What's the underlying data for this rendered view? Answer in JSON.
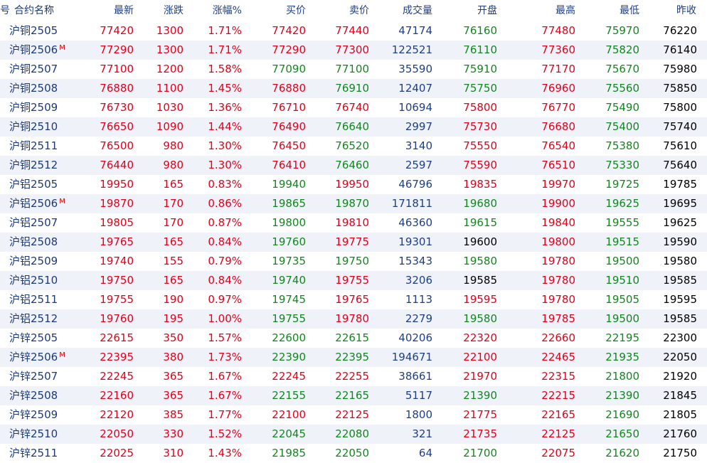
{
  "header": {
    "index": "号",
    "name": "合约名称",
    "last": "最新",
    "change": "涨跌",
    "pct": "涨幅%",
    "bid": "买价",
    "ask": "卖价",
    "volume": "成交量",
    "open": "开盘",
    "high": "最高",
    "low": "最低",
    "prev": "昨收"
  },
  "colors": {
    "up": "#e1001a",
    "down": "#11871d",
    "flat": "#000000",
    "text_blue": "#1f3f84",
    "stripe": "#f0f2fa"
  },
  "rows": [
    {
      "name": "沪铜2505",
      "m": "",
      "last": "77420",
      "change": "1300",
      "pct": "1.71%",
      "bid": "77420",
      "ask": "77440",
      "volume": "47174",
      "open": "76160",
      "high": "77480",
      "low": "75970",
      "prev": "76220",
      "c": {
        "last": "up",
        "change": "up",
        "pct": "up",
        "bid": "up",
        "ask": "up",
        "open": "down",
        "high": "up",
        "low": "down"
      }
    },
    {
      "name": "沪铜2506",
      "m": "M",
      "last": "77290",
      "change": "1300",
      "pct": "1.71%",
      "bid": "77290",
      "ask": "77300",
      "volume": "122521",
      "open": "76110",
      "high": "77360",
      "low": "75820",
      "prev": "76140",
      "c": {
        "last": "up",
        "change": "up",
        "pct": "up",
        "bid": "up",
        "ask": "up",
        "open": "down",
        "high": "up",
        "low": "down"
      }
    },
    {
      "name": "沪铜2507",
      "m": "",
      "last": "77100",
      "change": "1200",
      "pct": "1.58%",
      "bid": "77090",
      "ask": "77100",
      "volume": "35590",
      "open": "75910",
      "high": "77170",
      "low": "75670",
      "prev": "75980",
      "c": {
        "last": "up",
        "change": "up",
        "pct": "up",
        "bid": "down",
        "ask": "down",
        "open": "down",
        "high": "up",
        "low": "down"
      }
    },
    {
      "name": "沪铜2508",
      "m": "",
      "last": "76880",
      "change": "1100",
      "pct": "1.45%",
      "bid": "76880",
      "ask": "76910",
      "volume": "12407",
      "open": "75750",
      "high": "76960",
      "low": "75560",
      "prev": "75850",
      "c": {
        "last": "up",
        "change": "up",
        "pct": "up",
        "bid": "up",
        "ask": "down",
        "open": "down",
        "high": "up",
        "low": "down"
      }
    },
    {
      "name": "沪铜2509",
      "m": "",
      "last": "76730",
      "change": "1030",
      "pct": "1.36%",
      "bid": "76710",
      "ask": "76740",
      "volume": "10694",
      "open": "75800",
      "high": "76770",
      "low": "75490",
      "prev": "75800",
      "c": {
        "last": "up",
        "change": "up",
        "pct": "up",
        "bid": "up",
        "ask": "up",
        "open": "up",
        "high": "up",
        "low": "down"
      }
    },
    {
      "name": "沪铜2510",
      "m": "",
      "last": "76650",
      "change": "1090",
      "pct": "1.44%",
      "bid": "76490",
      "ask": "76640",
      "volume": "2997",
      "open": "75730",
      "high": "76680",
      "low": "75400",
      "prev": "75740",
      "c": {
        "last": "up",
        "change": "up",
        "pct": "up",
        "bid": "up",
        "ask": "down",
        "open": "up",
        "high": "up",
        "low": "down"
      }
    },
    {
      "name": "沪铜2511",
      "m": "",
      "last": "76500",
      "change": "980",
      "pct": "1.30%",
      "bid": "76450",
      "ask": "76520",
      "volume": "3140",
      "open": "75550",
      "high": "76540",
      "low": "75380",
      "prev": "75610",
      "c": {
        "last": "up",
        "change": "up",
        "pct": "up",
        "bid": "up",
        "ask": "down",
        "open": "up",
        "high": "up",
        "low": "down"
      }
    },
    {
      "name": "沪铜2512",
      "m": "",
      "last": "76440",
      "change": "980",
      "pct": "1.30%",
      "bid": "76410",
      "ask": "76460",
      "volume": "2597",
      "open": "75590",
      "high": "76510",
      "low": "75330",
      "prev": "75640",
      "c": {
        "last": "up",
        "change": "up",
        "pct": "up",
        "bid": "up",
        "ask": "down",
        "open": "up",
        "high": "up",
        "low": "down"
      }
    },
    {
      "name": "沪铝2505",
      "m": "",
      "last": "19950",
      "change": "165",
      "pct": "0.83%",
      "bid": "19940",
      "ask": "19950",
      "volume": "46796",
      "open": "19835",
      "high": "19970",
      "low": "19725",
      "prev": "19785",
      "c": {
        "last": "up",
        "change": "up",
        "pct": "up",
        "bid": "down",
        "ask": "up",
        "open": "up",
        "high": "up",
        "low": "down"
      }
    },
    {
      "name": "沪铝2506",
      "m": "M",
      "last": "19870",
      "change": "170",
      "pct": "0.86%",
      "bid": "19865",
      "ask": "19870",
      "volume": "171811",
      "open": "19680",
      "high": "19900",
      "low": "19625",
      "prev": "19695",
      "c": {
        "last": "up",
        "change": "up",
        "pct": "up",
        "bid": "down",
        "ask": "down",
        "open": "down",
        "high": "up",
        "low": "down"
      }
    },
    {
      "name": "沪铝2507",
      "m": "",
      "last": "19805",
      "change": "170",
      "pct": "0.87%",
      "bid": "19800",
      "ask": "19810",
      "volume": "46360",
      "open": "19615",
      "high": "19840",
      "low": "19555",
      "prev": "19625",
      "c": {
        "last": "up",
        "change": "up",
        "pct": "up",
        "bid": "down",
        "ask": "up",
        "open": "down",
        "high": "up",
        "low": "down"
      }
    },
    {
      "name": "沪铝2508",
      "m": "",
      "last": "19765",
      "change": "165",
      "pct": "0.84%",
      "bid": "19760",
      "ask": "19775",
      "volume": "19301",
      "open": "19600",
      "high": "19800",
      "low": "19515",
      "prev": "19590",
      "c": {
        "last": "up",
        "change": "up",
        "pct": "up",
        "bid": "down",
        "ask": "up",
        "open": "flat",
        "high": "up",
        "low": "down"
      }
    },
    {
      "name": "沪铝2509",
      "m": "",
      "last": "19740",
      "change": "155",
      "pct": "0.79%",
      "bid": "19735",
      "ask": "19750",
      "volume": "15343",
      "open": "19580",
      "high": "19780",
      "low": "19500",
      "prev": "19580",
      "c": {
        "last": "up",
        "change": "up",
        "pct": "up",
        "bid": "down",
        "ask": "down",
        "open": "down",
        "high": "up",
        "low": "down"
      }
    },
    {
      "name": "沪铝2510",
      "m": "",
      "last": "19750",
      "change": "165",
      "pct": "0.84%",
      "bid": "19740",
      "ask": "19755",
      "volume": "3206",
      "open": "19585",
      "high": "19780",
      "low": "19510",
      "prev": "19585",
      "c": {
        "last": "up",
        "change": "up",
        "pct": "up",
        "bid": "down",
        "ask": "up",
        "open": "flat",
        "high": "up",
        "low": "down"
      }
    },
    {
      "name": "沪铝2511",
      "m": "",
      "last": "19755",
      "change": "190",
      "pct": "0.97%",
      "bid": "19745",
      "ask": "19765",
      "volume": "1113",
      "open": "19595",
      "high": "19780",
      "low": "19505",
      "prev": "19595",
      "c": {
        "last": "up",
        "change": "up",
        "pct": "up",
        "bid": "down",
        "ask": "up",
        "open": "up",
        "high": "up",
        "low": "down"
      }
    },
    {
      "name": "沪铝2512",
      "m": "",
      "last": "19760",
      "change": "195",
      "pct": "1.00%",
      "bid": "19755",
      "ask": "19780",
      "volume": "2279",
      "open": "19580",
      "high": "19785",
      "low": "19500",
      "prev": "19585",
      "c": {
        "last": "up",
        "change": "up",
        "pct": "up",
        "bid": "down",
        "ask": "up",
        "open": "down",
        "high": "up",
        "low": "down"
      }
    },
    {
      "name": "沪锌2505",
      "m": "",
      "last": "22615",
      "change": "350",
      "pct": "1.57%",
      "bid": "22600",
      "ask": "22615",
      "volume": "40206",
      "open": "22320",
      "high": "22660",
      "low": "22195",
      "prev": "22300",
      "c": {
        "last": "up",
        "change": "up",
        "pct": "up",
        "bid": "down",
        "ask": "down",
        "open": "up",
        "high": "up",
        "low": "down"
      }
    },
    {
      "name": "沪锌2506",
      "m": "M",
      "last": "22395",
      "change": "380",
      "pct": "1.73%",
      "bid": "22390",
      "ask": "22395",
      "volume": "194671",
      "open": "22100",
      "high": "22465",
      "low": "21935",
      "prev": "22050",
      "c": {
        "last": "up",
        "change": "up",
        "pct": "up",
        "bid": "down",
        "ask": "down",
        "open": "up",
        "high": "up",
        "low": "down"
      }
    },
    {
      "name": "沪锌2507",
      "m": "",
      "last": "22245",
      "change": "365",
      "pct": "1.67%",
      "bid": "22245",
      "ask": "22255",
      "volume": "38661",
      "open": "21970",
      "high": "22315",
      "low": "21800",
      "prev": "21920",
      "c": {
        "last": "up",
        "change": "up",
        "pct": "up",
        "bid": "up",
        "ask": "up",
        "open": "up",
        "high": "up",
        "low": "down"
      }
    },
    {
      "name": "沪锌2508",
      "m": "",
      "last": "22160",
      "change": "365",
      "pct": "1.67%",
      "bid": "22155",
      "ask": "22165",
      "volume": "5117",
      "open": "21390",
      "high": "22215",
      "low": "21390",
      "prev": "21845",
      "c": {
        "last": "up",
        "change": "up",
        "pct": "up",
        "bid": "down",
        "ask": "down",
        "open": "down",
        "high": "up",
        "low": "down"
      }
    },
    {
      "name": "沪锌2509",
      "m": "",
      "last": "22120",
      "change": "385",
      "pct": "1.77%",
      "bid": "22100",
      "ask": "22125",
      "volume": "1800",
      "open": "21775",
      "high": "22165",
      "low": "21690",
      "prev": "21805",
      "c": {
        "last": "up",
        "change": "up",
        "pct": "up",
        "bid": "up",
        "ask": "up",
        "open": "up",
        "high": "up",
        "low": "down"
      }
    },
    {
      "name": "沪锌2510",
      "m": "",
      "last": "22050",
      "change": "330",
      "pct": "1.52%",
      "bid": "22045",
      "ask": "22080",
      "volume": "321",
      "open": "21735",
      "high": "22125",
      "low": "21650",
      "prev": "21760",
      "c": {
        "last": "up",
        "change": "up",
        "pct": "up",
        "bid": "down",
        "ask": "down",
        "open": "up",
        "high": "up",
        "low": "down"
      }
    },
    {
      "name": "沪锌2511",
      "m": "",
      "last": "22025",
      "change": "310",
      "pct": "1.43%",
      "bid": "21985",
      "ask": "22050",
      "volume": "64",
      "open": "21700",
      "high": "22075",
      "low": "21620",
      "prev": "21750",
      "c": {
        "last": "up",
        "change": "up",
        "pct": "up",
        "bid": "down",
        "ask": "down",
        "open": "down",
        "high": "up",
        "low": "down"
      }
    }
  ]
}
